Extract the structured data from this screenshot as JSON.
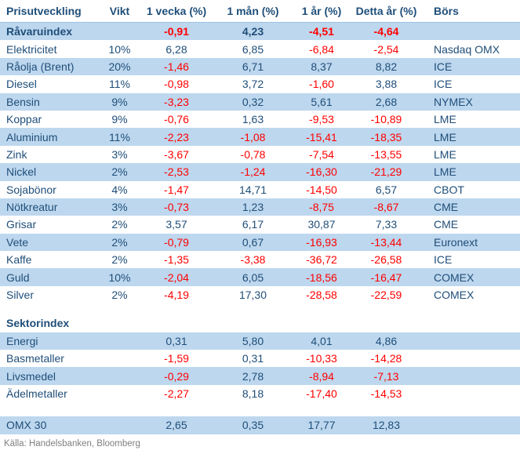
{
  "colors": {
    "text_blue": "#1F4E79",
    "row_highlight_blue": "#BDD7EE",
    "negative_red": "#FF0000",
    "footer_gray": "#7F7F7F"
  },
  "table": {
    "headers": [
      "Prisutveckling",
      "Vikt",
      "1 vecka (%)",
      "1 mån (%)",
      "1 år (%)",
      "Detta år (%)",
      "Börs"
    ],
    "sections": [
      {
        "name": "commodities",
        "rows": [
          {
            "name": "Råvaruindex",
            "vikt": "",
            "v1": "-0,91",
            "m1": "4,23",
            "y1": "-4,51",
            "ytd": "-4,64",
            "bors": ""
          },
          {
            "name": "Elektricitet",
            "vikt": "10%",
            "v1": "6,28",
            "m1": "6,85",
            "y1": "-6,84",
            "ytd": "-2,54",
            "bors": "Nasdaq OMX"
          },
          {
            "name": "Råolja (Brent)",
            "vikt": "20%",
            "v1": "-1,46",
            "m1": "6,71",
            "y1": "8,37",
            "ytd": "8,82",
            "bors": "ICE"
          },
          {
            "name": "Diesel",
            "vikt": "11%",
            "v1": "-0,98",
            "m1": "3,72",
            "y1": "-1,60",
            "ytd": "3,88",
            "bors": "ICE"
          },
          {
            "name": "Bensin",
            "vikt": "9%",
            "v1": "-3,23",
            "m1": "0,32",
            "y1": "5,61",
            "ytd": "2,68",
            "bors": "NYMEX"
          },
          {
            "name": "Koppar",
            "vikt": "9%",
            "v1": "-0,76",
            "m1": "1,63",
            "y1": "-9,53",
            "ytd": "-10,89",
            "bors": "LME"
          },
          {
            "name": "Aluminium",
            "vikt": "11%",
            "v1": "-2,23",
            "m1": "-1,08",
            "y1": "-15,41",
            "ytd": "-18,35",
            "bors": "LME"
          },
          {
            "name": "Zink",
            "vikt": "3%",
            "v1": "-3,67",
            "m1": "-0,78",
            "y1": "-7,54",
            "ytd": "-13,55",
            "bors": "LME"
          },
          {
            "name": "Nickel",
            "vikt": "2%",
            "v1": "-2,53",
            "m1": "-1,24",
            "y1": "-16,30",
            "ytd": "-21,29",
            "bors": "LME"
          },
          {
            "name": "Sojabönor",
            "vikt": "4%",
            "v1": "-1,47",
            "m1": "14,71",
            "y1": "-14,50",
            "ytd": "6,57",
            "bors": "CBOT"
          },
          {
            "name": "Nötkreatur",
            "vikt": "3%",
            "v1": "-0,73",
            "m1": "1,23",
            "y1": "-8,75",
            "ytd": "-8,67",
            "bors": "CME"
          },
          {
            "name": "Grisar",
            "vikt": "2%",
            "v1": "3,57",
            "m1": "6,17",
            "y1": "30,87",
            "ytd": "7,33",
            "bors": "CME"
          },
          {
            "name": "Vete",
            "vikt": "2%",
            "v1": "-0,79",
            "m1": "0,67",
            "y1": "-16,93",
            "ytd": "-13,44",
            "bors": "Euronext"
          },
          {
            "name": "Kaffe",
            "vikt": "2%",
            "v1": "-1,35",
            "m1": "-3,38",
            "y1": "-36,72",
            "ytd": "-26,58",
            "bors": "ICE"
          },
          {
            "name": "Guld",
            "vikt": "10%",
            "v1": "-2,04",
            "m1": "6,05",
            "y1": "-18,56",
            "ytd": "-16,47",
            "bors": "COMEX"
          },
          {
            "name": "Silver",
            "vikt": "2%",
            "v1": "-4,19",
            "m1": "17,30",
            "y1": "-28,58",
            "ytd": "-22,59",
            "bors": "COMEX"
          }
        ]
      },
      {
        "name": "sector-index",
        "title": "Sektorindex",
        "rows": [
          {
            "name": "Energi",
            "vikt": "",
            "v1": "0,31",
            "m1": "5,80",
            "y1": "4,01",
            "ytd": "4,86",
            "bors": ""
          },
          {
            "name": "Basmetaller",
            "vikt": "",
            "v1": "-1,59",
            "m1": "0,31",
            "y1": "-10,33",
            "ytd": "-14,28",
            "bors": ""
          },
          {
            "name": "Livsmedel",
            "vikt": "",
            "v1": "-0,29",
            "m1": "2,78",
            "y1": "-8,94",
            "ytd": "-7,13",
            "bors": ""
          },
          {
            "name": "Ädelmetaller",
            "vikt": "",
            "v1": "-2,27",
            "m1": "8,18",
            "y1": "-17,40",
            "ytd": "-14,53",
            "bors": ""
          }
        ]
      },
      {
        "name": "omx",
        "rows": [
          {
            "name": "OMX 30",
            "vikt": "",
            "v1": "2,65",
            "m1": "0,35",
            "y1": "17,77",
            "ytd": "12,83",
            "bors": ""
          }
        ]
      }
    ],
    "footer": "Källa: Handelsbanken, Bloomberg"
  }
}
